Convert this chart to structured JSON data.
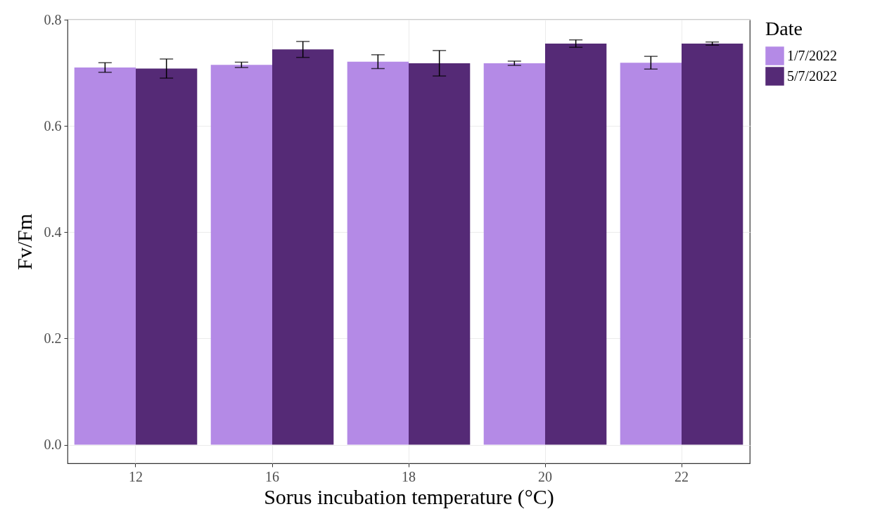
{
  "chart_data": {
    "type": "bar",
    "xlabel": "Sorus incubation temperature (°C)",
    "ylabel": "Fv/Fm",
    "legend_title": "Date",
    "categories": [
      "12",
      "16",
      "18",
      "20",
      "22"
    ],
    "series": [
      {
        "name": "1/7/2022",
        "color": "#b48ae6",
        "values": [
          0.71,
          0.715,
          0.721,
          0.718,
          0.719
        ],
        "errors": [
          0.009,
          0.005,
          0.013,
          0.004,
          0.012
        ]
      },
      {
        "name": "5/7/2022",
        "color": "#552a76",
        "values": [
          0.708,
          0.744,
          0.718,
          0.755,
          0.755
        ],
        "errors": [
          0.018,
          0.015,
          0.024,
          0.007,
          0.003
        ]
      }
    ],
    "ylim": [
      -0.035,
      0.8
    ],
    "yticks": [
      {
        "value": 0,
        "label": "0.0"
      },
      0.2,
      0.4,
      0.6,
      0.8
    ],
    "grid": true,
    "legend": "right"
  }
}
